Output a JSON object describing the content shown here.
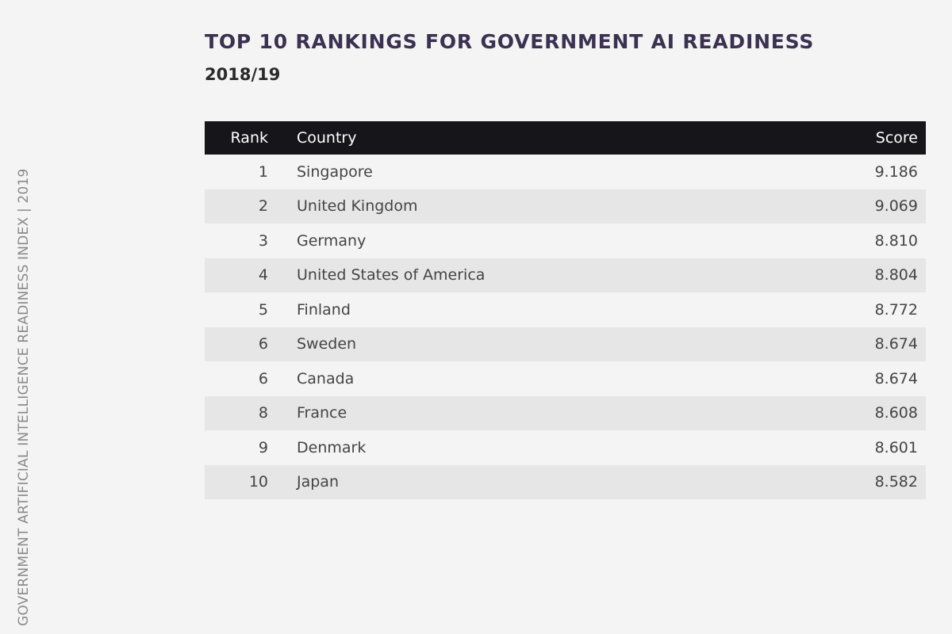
{
  "side_label": "GOVERNMENT ARTIFICIAL INTELLIGENCE READINESS INDEX | 2019",
  "header": {
    "title": "TOP 10 RANKINGS FOR GOVERNMENT AI READINESS",
    "subtitle": "2018/19"
  },
  "table": {
    "columns": [
      "Rank",
      "Country",
      "Score"
    ],
    "rows": [
      [
        "1",
        "Singapore",
        "9.186"
      ],
      [
        "2",
        "United Kingdom",
        "9.069"
      ],
      [
        "3",
        "Germany",
        "8.810"
      ],
      [
        "4",
        "United States of America",
        "8.804"
      ],
      [
        "5",
        "Finland",
        "8.772"
      ],
      [
        "6",
        "Sweden",
        "8.674"
      ],
      [
        "6",
        "Canada",
        "8.674"
      ],
      [
        "8",
        "France",
        "8.608"
      ],
      [
        "9",
        "Denmark",
        "8.601"
      ],
      [
        "10",
        "Japan",
        "8.582"
      ]
    ]
  }
}
